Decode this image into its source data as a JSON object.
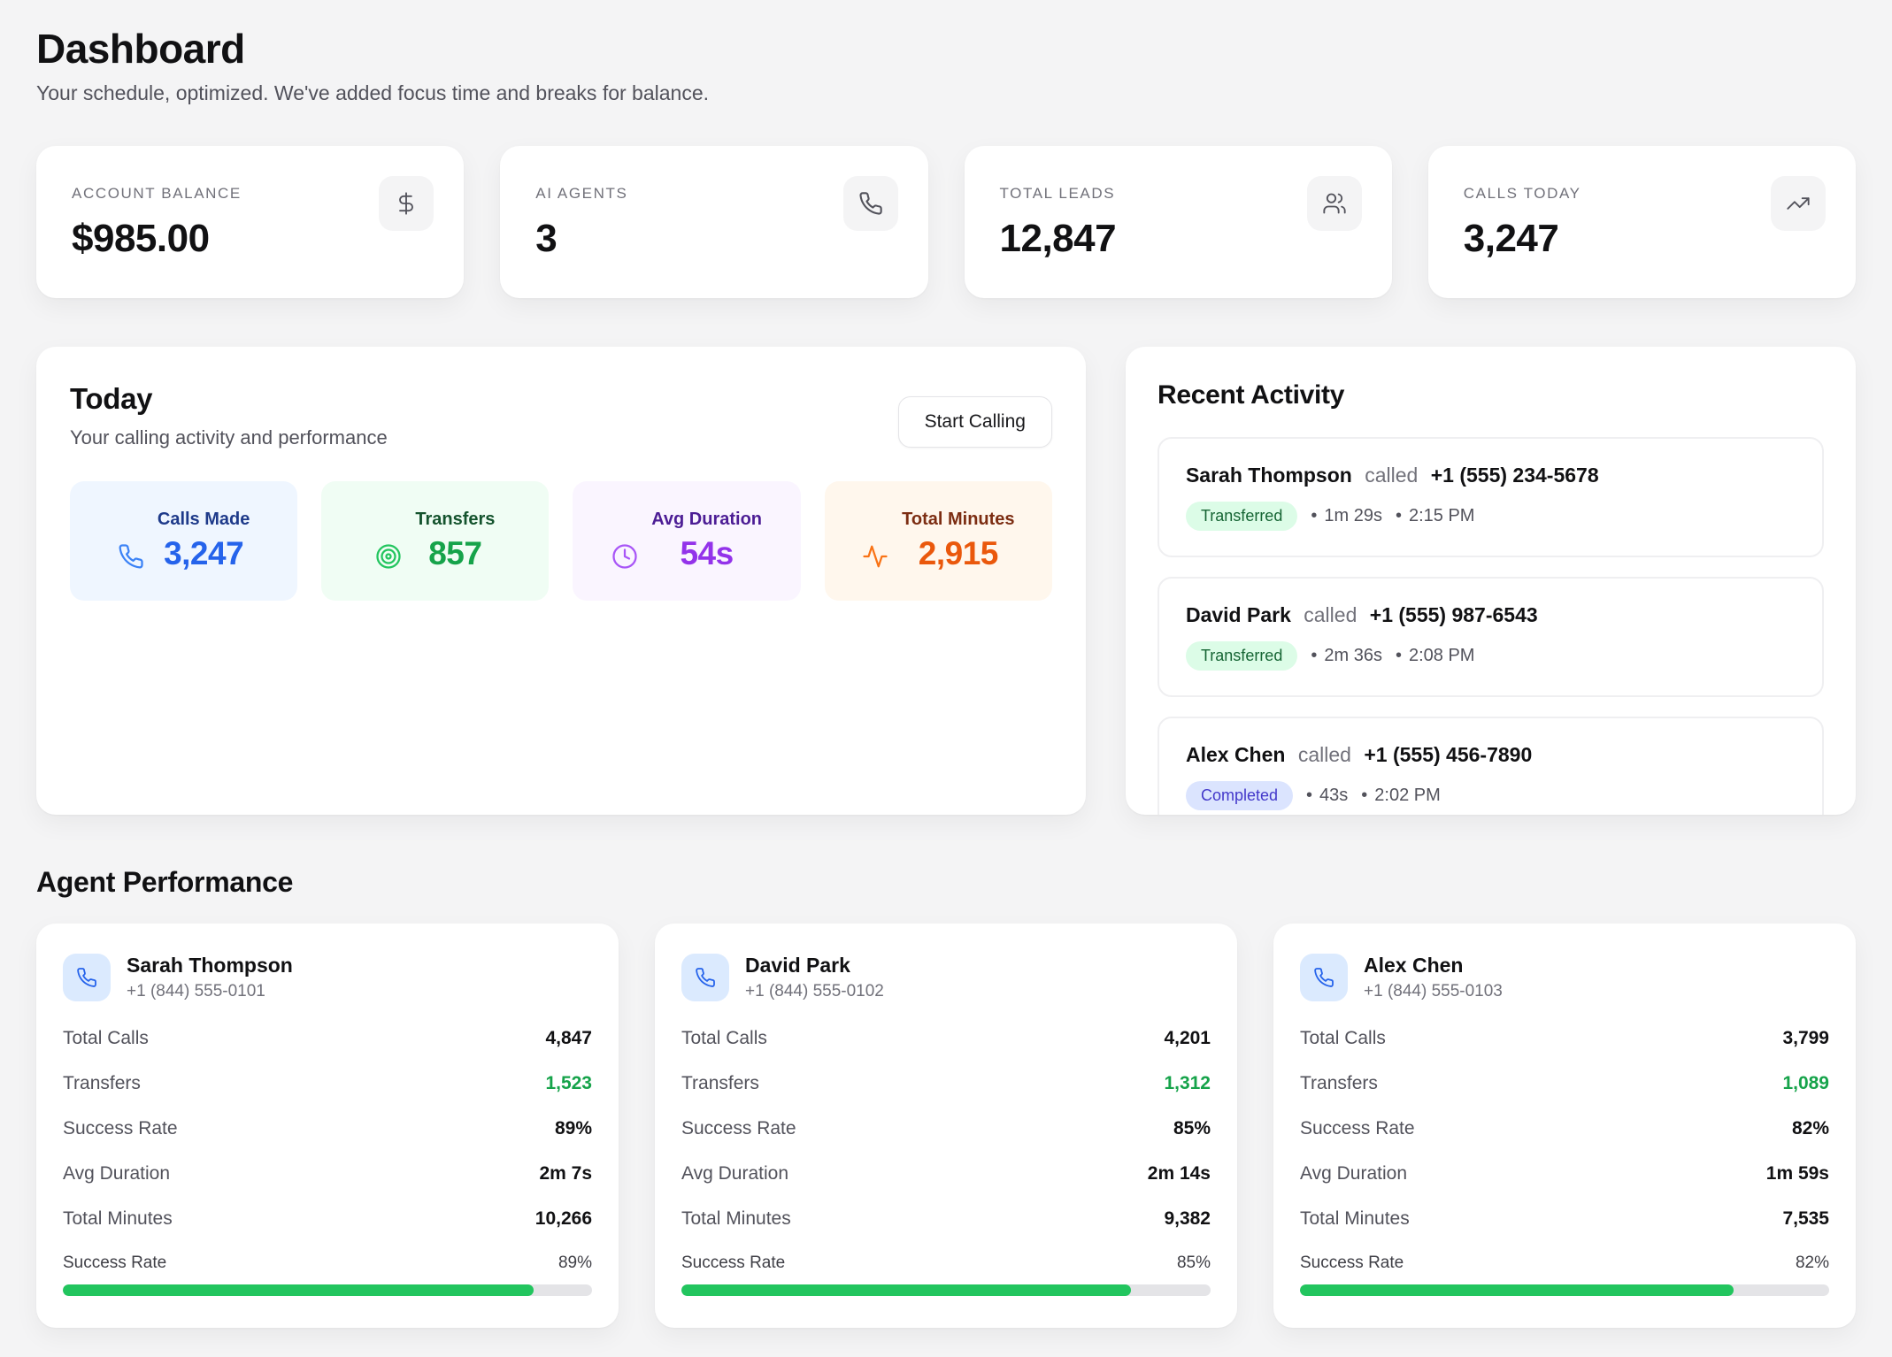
{
  "page": {
    "title": "Dashboard",
    "subtitle": "Your schedule, optimized. We've added focus time and breaks for balance."
  },
  "stats": [
    {
      "label": "ACCOUNT BALANCE",
      "value": "$985.00",
      "icon": "dollar-icon"
    },
    {
      "label": "AI AGENTS",
      "value": "3",
      "icon": "phone-icon"
    },
    {
      "label": "TOTAL LEADS",
      "value": "12,847",
      "icon": "users-icon"
    },
    {
      "label": "CALLS TODAY",
      "value": "3,247",
      "icon": "trending-up-icon"
    }
  ],
  "today": {
    "title": "Today",
    "subtitle": "Your calling activity and performance",
    "start_calling_label": "Start Calling",
    "metrics": [
      {
        "label": "Calls Made",
        "value": "3,247",
        "icon": "phone-icon",
        "bg": "#eff6ff",
        "label_color": "#1e3a8a",
        "value_color": "#2563eb",
        "icon_color": "#3b82f6"
      },
      {
        "label": "Transfers",
        "value": "857",
        "icon": "target-icon",
        "bg": "#f0fdf4",
        "label_color": "#14532d",
        "value_color": "#16a34a",
        "icon_color": "#22c55e"
      },
      {
        "label": "Avg Duration",
        "value": "54s",
        "icon": "clock-icon",
        "bg": "#faf5ff",
        "label_color": "#4c1d95",
        "value_color": "#9333ea",
        "icon_color": "#a855f7"
      },
      {
        "label": "Total Minutes",
        "value": "2,915",
        "icon": "activity-icon",
        "bg": "#fff7ed",
        "label_color": "#7c2d12",
        "value_color": "#ea580c",
        "icon_color": "#f97316"
      }
    ]
  },
  "recent_activity": {
    "title": "Recent Activity",
    "meta_separator": "•",
    "items": [
      {
        "name": "Sarah Thompson",
        "action": "called",
        "phone": "+1 (555) 234-5678",
        "status": "Transferred",
        "duration": "1m 29s",
        "time": "2:15 PM"
      },
      {
        "name": "David Park",
        "action": "called",
        "phone": "+1 (555) 987-6543",
        "status": "Transferred",
        "duration": "2m 36s",
        "time": "2:08 PM"
      },
      {
        "name": "Alex Chen",
        "action": "called",
        "phone": "+1 (555) 456-7890",
        "status": "Completed",
        "duration": "43s",
        "time": "2:02 PM"
      }
    ],
    "badge_styles": {
      "Transferred": {
        "bg": "#dcfce7",
        "text": "#166534"
      },
      "Completed": {
        "bg": "#dbe4fe",
        "text": "#4338ca"
      }
    }
  },
  "agent_performance": {
    "title": "Agent Performance",
    "row_labels": {
      "total_calls": "Total Calls",
      "transfers": "Transfers",
      "success_rate": "Success Rate",
      "avg_duration": "Avg Duration",
      "total_minutes": "Total Minutes"
    },
    "progress_label": "Success Rate",
    "agents": [
      {
        "name": "Sarah Thompson",
        "phone": "+1 (844) 555-0101",
        "total_calls": "4,847",
        "transfers": "1,523",
        "success_rate": "89%",
        "avg_duration": "2m 7s",
        "total_minutes": "10,266",
        "success_rate_pct": 89
      },
      {
        "name": "David Park",
        "phone": "+1 (844) 555-0102",
        "total_calls": "4,201",
        "transfers": "1,312",
        "success_rate": "85%",
        "avg_duration": "2m 14s",
        "total_minutes": "9,382",
        "success_rate_pct": 85
      },
      {
        "name": "Alex Chen",
        "phone": "+1 (844) 555-0103",
        "total_calls": "3,799",
        "transfers": "1,089",
        "success_rate": "82%",
        "avg_duration": "1m 59s",
        "total_minutes": "7,535",
        "success_rate_pct": 82
      }
    ]
  },
  "colors": {
    "page_bg": "#f4f4f5",
    "card_bg": "#ffffff",
    "progress_fill": "#22c55e",
    "progress_track": "#e4e4e7",
    "transfers_green": "#16a34a",
    "agent_avatar_bg": "#dbeafe",
    "agent_avatar_icon": "#2563eb"
  }
}
